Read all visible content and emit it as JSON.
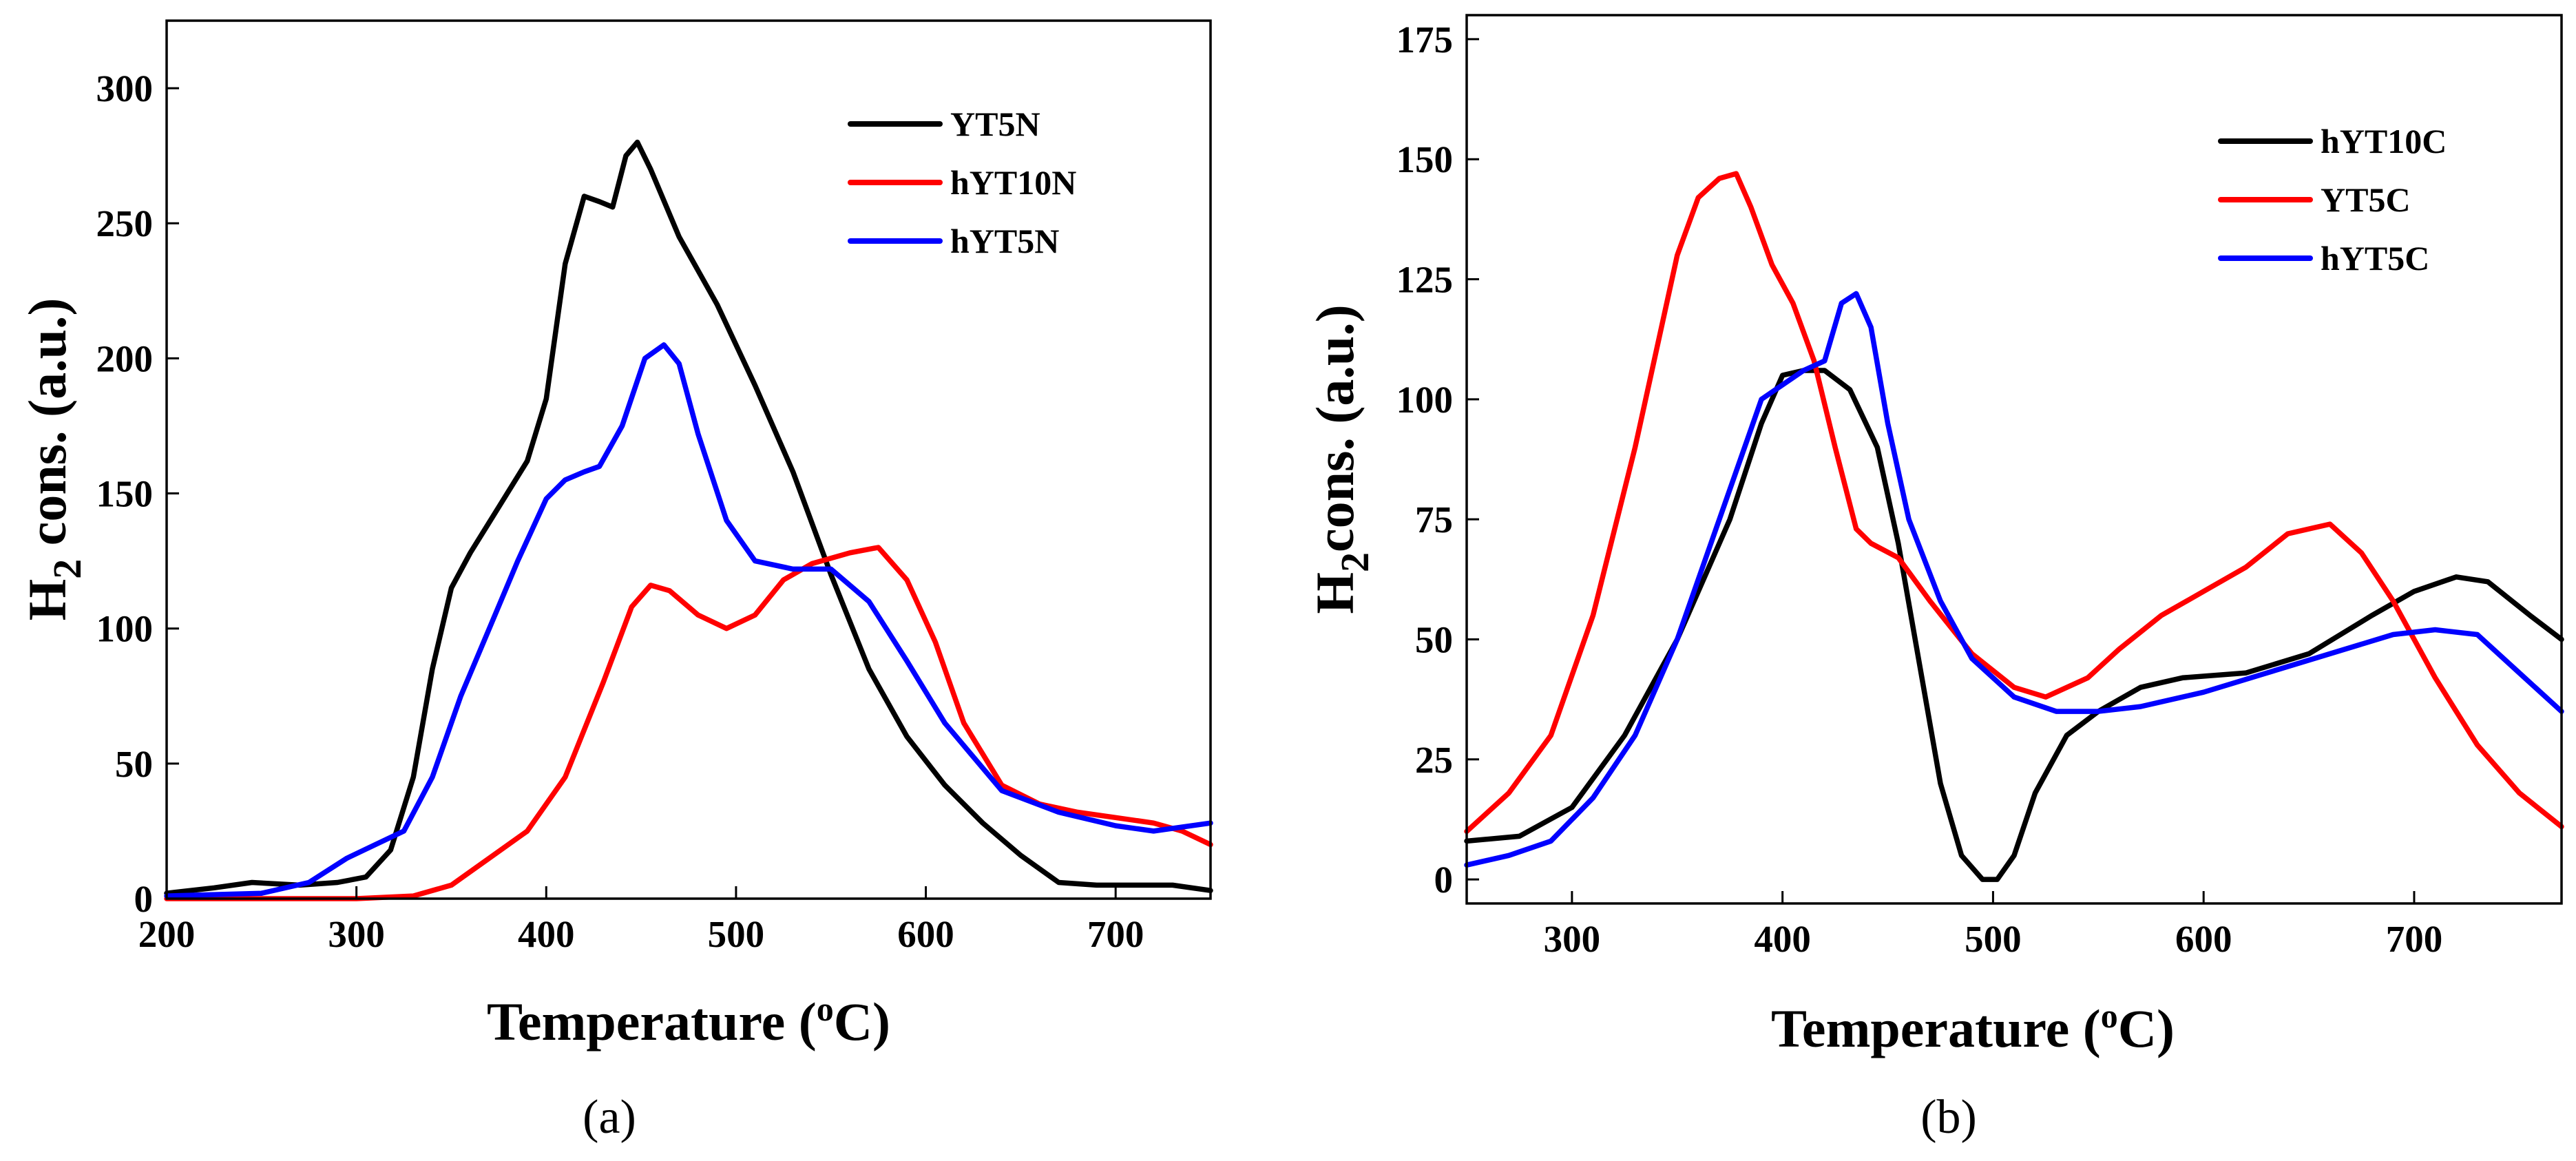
{
  "chart_data": [
    {
      "type": "line",
      "panel_label": "(a)",
      "xlabel": "Temperature (",
      "xlabel_superscript": "o",
      "xlabel_suffix": "C)",
      "ylabel": "H",
      "ylabel_subscript": "2",
      "ylabel_suffix": " cons. (a.u.)",
      "xlim": [
        200,
        750
      ],
      "ylim": [
        0,
        325
      ],
      "xticks": [
        200,
        300,
        400,
        500,
        600,
        700
      ],
      "yticks": [
        0,
        50,
        100,
        150,
        200,
        250,
        300
      ],
      "legend_position": "top-right",
      "series": [
        {
          "name": "YT5N",
          "color": "#000000",
          "x": [
            200,
            225,
            245,
            270,
            290,
            305,
            318,
            330,
            340,
            350,
            360,
            375,
            390,
            400,
            410,
            420,
            428,
            435,
            442,
            448,
            455,
            470,
            490,
            510,
            530,
            550,
            570,
            590,
            610,
            630,
            650,
            670,
            690,
            710,
            730,
            750
          ],
          "y": [
            2,
            4,
            6,
            5,
            6,
            8,
            18,
            45,
            85,
            115,
            128,
            145,
            162,
            185,
            235,
            260,
            258,
            256,
            275,
            280,
            270,
            245,
            220,
            190,
            158,
            120,
            85,
            60,
            42,
            28,
            16,
            6,
            5,
            5,
            5,
            3
          ]
        },
        {
          "name": "hYT10N",
          "color": "#ff0000",
          "x": [
            200,
            250,
            300,
            330,
            350,
            370,
            390,
            410,
            430,
            445,
            455,
            465,
            480,
            495,
            510,
            525,
            540,
            560,
            575,
            590,
            605,
            620,
            640,
            660,
            680,
            700,
            720,
            735,
            750
          ],
          "y": [
            0,
            0,
            0,
            1,
            5,
            15,
            25,
            45,
            80,
            108,
            116,
            114,
            105,
            100,
            105,
            118,
            124,
            128,
            130,
            118,
            95,
            65,
            42,
            35,
            32,
            30,
            28,
            25,
            20
          ]
        },
        {
          "name": "hYT5N",
          "color": "#0000ff",
          "x": [
            200,
            250,
            275,
            295,
            310,
            325,
            340,
            355,
            370,
            385,
            400,
            410,
            420,
            428,
            440,
            452,
            462,
            470,
            480,
            495,
            510,
            530,
            550,
            570,
            590,
            610,
            640,
            670,
            700,
            720,
            750
          ],
          "y": [
            1,
            2,
            6,
            15,
            20,
            25,
            45,
            75,
            100,
            125,
            148,
            155,
            158,
            160,
            175,
            200,
            205,
            198,
            172,
            140,
            125,
            122,
            122,
            110,
            88,
            65,
            40,
            32,
            27,
            25,
            28
          ]
        }
      ]
    },
    {
      "type": "line",
      "panel_label": "(b)",
      "xlabel": "Temperature (",
      "xlabel_superscript": "o",
      "xlabel_suffix": "C)",
      "ylabel": "H",
      "ylabel_subscript": "2",
      "ylabel_suffix": "cons. (a.u.)",
      "xlim": [
        250,
        770
      ],
      "ylim": [
        -5,
        180
      ],
      "xticks": [
        300,
        400,
        500,
        600,
        700
      ],
      "yticks": [
        0,
        25,
        50,
        75,
        100,
        125,
        150,
        175
      ],
      "legend_position": "top-right",
      "series": [
        {
          "name": "hYT10C",
          "color": "#000000",
          "x": [
            250,
            275,
            300,
            325,
            350,
            375,
            390,
            400,
            410,
            420,
            432,
            445,
            455,
            465,
            475,
            485,
            495,
            502,
            510,
            520,
            535,
            550,
            570,
            590,
            620,
            650,
            680,
            700,
            720,
            735,
            755,
            770
          ],
          "y": [
            8,
            9,
            15,
            30,
            50,
            75,
            95,
            105,
            106,
            106,
            102,
            90,
            70,
            45,
            20,
            5,
            0,
            0,
            5,
            18,
            30,
            35,
            40,
            42,
            43,
            47,
            55,
            60,
            63,
            62,
            55,
            50
          ]
        },
        {
          "name": "YT5C",
          "color": "#ff0000",
          "x": [
            250,
            270,
            290,
            310,
            330,
            350,
            360,
            370,
            378,
            385,
            395,
            405,
            415,
            425,
            435,
            442,
            455,
            470,
            490,
            510,
            525,
            545,
            560,
            580,
            600,
            620,
            640,
            660,
            675,
            690,
            710,
            730,
            750,
            770
          ],
          "y": [
            10,
            18,
            30,
            55,
            90,
            130,
            142,
            146,
            147,
            140,
            128,
            120,
            108,
            90,
            73,
            70,
            67,
            58,
            47,
            40,
            38,
            42,
            48,
            55,
            60,
            65,
            72,
            74,
            68,
            58,
            42,
            28,
            18,
            11
          ]
        },
        {
          "name": "hYT5C",
          "color": "#0000ff",
          "x": [
            250,
            270,
            290,
            310,
            330,
            350,
            370,
            390,
            400,
            410,
            420,
            428,
            435,
            442,
            450,
            460,
            475,
            490,
            510,
            530,
            550,
            570,
            600,
            630,
            660,
            690,
            710,
            730,
            750,
            770
          ],
          "y": [
            3,
            5,
            8,
            17,
            30,
            50,
            75,
            100,
            103,
            106,
            108,
            120,
            122,
            115,
            95,
            75,
            58,
            46,
            38,
            35,
            35,
            36,
            39,
            43,
            47,
            51,
            52,
            51,
            43,
            35
          ]
        }
      ]
    }
  ]
}
